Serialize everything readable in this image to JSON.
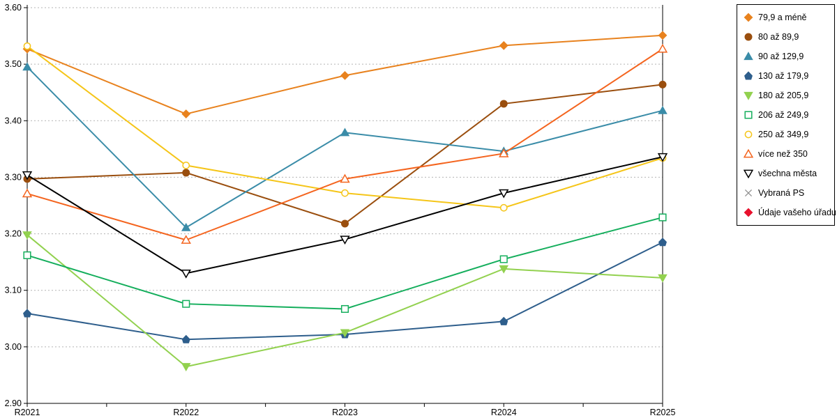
{
  "chart_data": {
    "type": "line",
    "title": "",
    "xlabel": "",
    "ylabel": "",
    "categories": [
      "R2021",
      "R2022",
      "R2023",
      "R2024",
      "R2025"
    ],
    "ylim": [
      2.9,
      3.6
    ],
    "ytick_step": 0.1,
    "ytick_labels": [
      "2.90",
      "3.00",
      "3.10",
      "3.20",
      "3.30",
      "3.40",
      "3.50",
      "3.60"
    ],
    "grid": "horizontal dashed",
    "legend_position": "right",
    "series": [
      {
        "name": "79,9 a méně",
        "color": "#E8821E",
        "marker": "diamond",
        "fill": "solid",
        "values": [
          3.527,
          3.412,
          3.48,
          3.533,
          3.551
        ]
      },
      {
        "name": "80 až 89,9",
        "color": "#9A4E0E",
        "marker": "circle",
        "fill": "solid",
        "values": [
          3.297,
          3.308,
          3.218,
          3.43,
          3.464
        ]
      },
      {
        "name": "90 až 129,9",
        "color": "#3A8CA8",
        "marker": "triangle-up",
        "fill": "solid",
        "values": [
          3.495,
          3.211,
          3.379,
          3.346,
          3.418
        ]
      },
      {
        "name": "130 až 179,9",
        "color": "#2E5E8C",
        "marker": "pentagon",
        "fill": "solid",
        "values": [
          3.059,
          3.013,
          3.022,
          3.045,
          3.185
        ]
      },
      {
        "name": "180 až 205,9",
        "color": "#92D14F",
        "marker": "triangle-down",
        "fill": "solid",
        "values": [
          3.198,
          2.965,
          3.025,
          3.138,
          3.122
        ]
      },
      {
        "name": "206 až 249,9",
        "color": "#14AE5C",
        "marker": "square",
        "fill": "open",
        "values": [
          3.162,
          3.076,
          3.067,
          3.155,
          3.229
        ]
      },
      {
        "name": "250 až 349,9",
        "color": "#F5C518",
        "marker": "circle",
        "fill": "open",
        "values": [
          3.532,
          3.321,
          3.272,
          3.246,
          3.334
        ]
      },
      {
        "name": "více než 350",
        "color": "#F4641E",
        "marker": "triangle-up",
        "fill": "open",
        "values": [
          3.271,
          3.189,
          3.297,
          3.342,
          3.527
        ]
      },
      {
        "name": "všechna města",
        "color": "#000000",
        "marker": "triangle-down",
        "fill": "open",
        "values": [
          3.304,
          3.13,
          3.19,
          3.272,
          3.336
        ]
      },
      {
        "name": "Vybraná PS",
        "color": "#8C8C8C",
        "marker": "x",
        "fill": "open",
        "values": []
      },
      {
        "name": "Údaje vašeho úřadu",
        "color": "#E8112D",
        "marker": "diamond",
        "fill": "solid",
        "values": []
      }
    ]
  }
}
